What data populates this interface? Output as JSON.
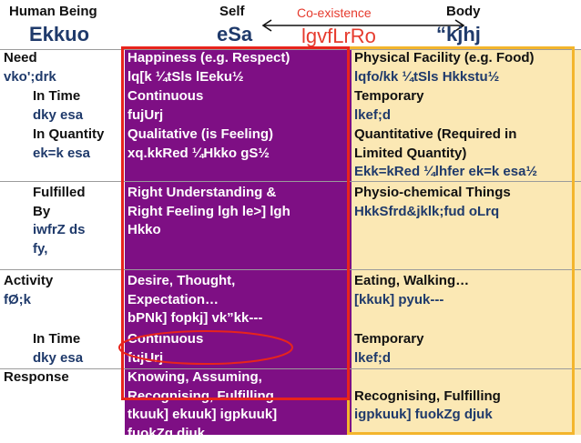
{
  "header": {
    "col1_en": "Human Being",
    "col1_hi": "Ekkuo",
    "col2_en": "Self",
    "col2_hi": "eSa",
    "co_en": "Co-existence",
    "co_hi": "lgvfLrRo",
    "col3_en": "Body",
    "col3_hi": "“kjhj"
  },
  "rows": {
    "need": {
      "label_en": "Need",
      "label_hi": "vko';drk",
      "self": [
        "Happiness (e.g. Respect)",
        "lq[k ¼tSls lEeku½"
      ],
      "body": [
        "Physical Facility (e.g. Food)",
        "lqfo/kk ¼tSls Hkkstu½"
      ]
    },
    "need_time": {
      "label_en": "In Time",
      "label_hi": "dky esa",
      "self": [
        "Continuous",
        "fujUrj"
      ],
      "body": [
        "Temporary",
        "lkef;d"
      ]
    },
    "need_qty": {
      "label_en": "In Quantity",
      "label_hi": "ek=k esa",
      "self": [
        "Qualitative (is Feeling)",
        "xq.kkRed ¼Hkko gS½"
      ],
      "body": [
        "Quantitative (Required in",
        "Limited Quantity)",
        "Ekk=kRed ¼lhfer ek=k esa½"
      ]
    },
    "fulfilled": {
      "label": [
        "Fulfilled",
        "By",
        "iwfrZ ds",
        "fy,"
      ],
      "self": [
        "Right Understanding &",
        "Right Feeling lgh le>] lgh",
        "Hkko"
      ],
      "body": [
        "Physio-chemical Things",
        "HkkSfrd&jklk;fud oLrq"
      ]
    },
    "activity": {
      "label_en": "Activity",
      "label_hi": "fØ;k",
      "self": [
        "Desire, Thought,",
        "Expectation…",
        "bPNk] fopkj] vk”kk---"
      ],
      "body": [
        "Eating, Walking…",
        "[kkuk] pyuk---"
      ]
    },
    "activity_time": {
      "label_en": "In Time",
      "label_hi": "dky esa",
      "self": [
        "Continuous",
        "fujUrj"
      ],
      "body": [
        "Temporary",
        "lkef;d"
      ]
    },
    "response": {
      "label": "Response",
      "self": [
        "Knowing, Assuming,",
        "Recognising, Fulfilling",
        "tkuuk] ekuuk] igpkuuk]",
        "fuokZg djuk"
      ],
      "body": [
        "Recognising, Fulfilling",
        "igpkuuk] fuokZg djuk"
      ]
    }
  },
  "colors": {
    "self_bg": "#7e0f84",
    "body_bg": "#fbe8b4",
    "hindi_text": "#1f3a6b",
    "red_rect": "#e8241c",
    "yellow_rect": "#f3b52c"
  }
}
